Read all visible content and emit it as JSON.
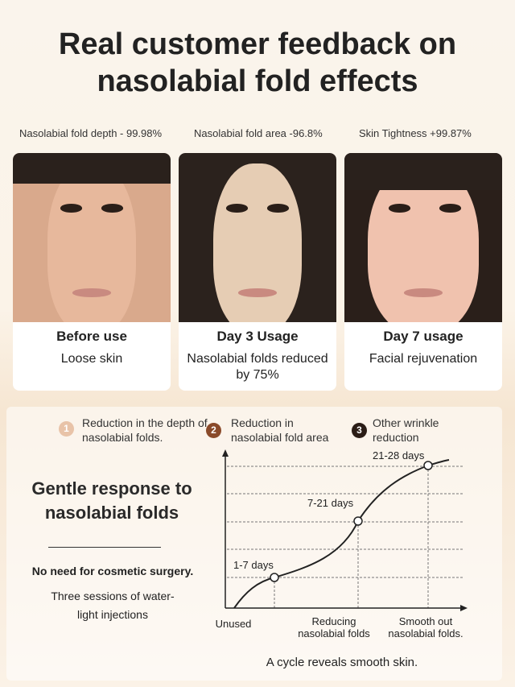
{
  "title": "Real customer feedback on nasolabial fold effects",
  "metrics": [
    "Nasolabial fold depth - 99.98%",
    "Nasolabial fold area -96.8%",
    "Skin Tightness +99.87%"
  ],
  "cards": [
    {
      "heading": "Before use",
      "text": "Loose skin"
    },
    {
      "heading": "Day 3 Usage",
      "text": "Nasolabial folds reduced by 75%"
    },
    {
      "heading": "Day 7 usage",
      "text": "Facial rejuvenation"
    }
  ],
  "steps": [
    {
      "num": "1",
      "text": "Reduction in the depth of nasolabial folds.",
      "color": "#e8c3a8"
    },
    {
      "num": "2",
      "text": "Reduction in nasolabial fold area",
      "color": "#8a4a2a"
    },
    {
      "num": "3",
      "text": "Other wrinkle reduction",
      "color": "#2b1d16"
    }
  ],
  "left": {
    "headline": "Gentle response to nasolabial folds",
    "subhead": "No need for cosmetic surgery.",
    "note": "Three sessions of water-light injections"
  },
  "chart_data": {
    "type": "line",
    "points": [
      {
        "label": "1-7 days"
      },
      {
        "label": "7-21 days"
      },
      {
        "label": "21-28 days"
      }
    ],
    "x_labels": [
      "Unused",
      "Reducing nasolabial folds",
      "Smooth out nasolabial folds."
    ],
    "grid": true
  },
  "footer": "A cycle reveals smooth skin."
}
